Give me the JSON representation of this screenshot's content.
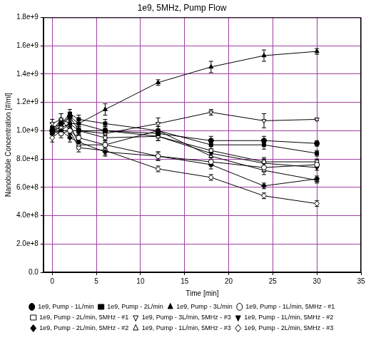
{
  "chart_data": {
    "type": "line",
    "title": "1e9, 5MHz, Pump Flow",
    "x_label": "Time [min]",
    "y_label": "Nanobubble Concentration [#/ml]",
    "x": [
      0,
      1,
      2,
      3,
      6,
      12,
      18,
      24,
      30
    ],
    "xlim": [
      -1,
      35
    ],
    "xticks": [
      0,
      5,
      10,
      15,
      20,
      25,
      30,
      35
    ],
    "ylim": [
      0,
      1800000000
    ],
    "yticks": [
      {
        "value": 0,
        "label": "0.0"
      },
      {
        "value": 200000000,
        "label": "2.0e+8"
      },
      {
        "value": 400000000,
        "label": "4.0e+8"
      },
      {
        "value": 600000000,
        "label": "6.0e+8"
      },
      {
        "value": 800000000,
        "label": "8.0e+8"
      },
      {
        "value": 1000000000,
        "label": "1.0e+9"
      },
      {
        "value": 1200000000,
        "label": "1.2e+9"
      },
      {
        "value": 1400000000,
        "label": "1.4e+9"
      },
      {
        "value": 1600000000,
        "label": "1.6e+9"
      },
      {
        "value": 1800000000,
        "label": "1.8e+9"
      }
    ],
    "grid": true,
    "legend": "bottom",
    "series": [
      {
        "name": "1e9, Pump - 1L/min",
        "color": "#000000",
        "marker": "circle",
        "values": [
          1000000000,
          1050000000,
          1100000000,
          1000000000,
          1000000000,
          980000000,
          930000000,
          930000000,
          910000000
        ],
        "errors": [
          30000000,
          30000000,
          30000000,
          30000000,
          30000000,
          30000000,
          30000000,
          30000000,
          20000000
        ]
      },
      {
        "name": "1e9, Pump - 2L/min",
        "color": "#000000",
        "marker": "square",
        "values": [
          1020000000,
          1050000000,
          1120000000,
          1080000000,
          1050000000,
          1000000000,
          900000000,
          900000000,
          840000000
        ],
        "errors": [
          30000000,
          30000000,
          30000000,
          30000000,
          30000000,
          30000000,
          30000000,
          30000000,
          20000000
        ]
      },
      {
        "name": "1e9, Pump - 3L/min",
        "color": "#000000",
        "marker": "triangle",
        "values": [
          1000000000,
          1000000000,
          1050000000,
          1050000000,
          1150000000,
          1340000000,
          1450000000,
          1530000000,
          1560000000
        ],
        "errors": [
          30000000,
          30000000,
          30000000,
          30000000,
          40000000,
          20000000,
          40000000,
          40000000,
          20000000
        ]
      },
      {
        "name": "1e9, Pump - 1L/min, 5MHz - #1",
        "color": "#000000",
        "marker": "circle-open",
        "values": [
          1000000000,
          980000000,
          1000000000,
          950000000,
          900000000,
          820000000,
          780000000,
          740000000,
          760000000
        ],
        "errors": [
          30000000,
          30000000,
          30000000,
          30000000,
          30000000,
          30000000,
          30000000,
          30000000,
          20000000
        ]
      },
      {
        "name": "1e9, Pump - 2L/min, 5MHz - #1",
        "color": "#000000",
        "marker": "square-open",
        "values": [
          1000000000,
          1020000000,
          1050000000,
          1000000000,
          950000000,
          960000000,
          860000000,
          780000000,
          780000000
        ],
        "errors": [
          30000000,
          30000000,
          30000000,
          30000000,
          30000000,
          30000000,
          30000000,
          30000000,
          20000000
        ]
      },
      {
        "name": "1e9, Pump - 3L/min, 5MHz - #3",
        "color": "#000000",
        "marker": "triangle-down-open",
        "values": [
          1050000000,
          1080000000,
          1000000000,
          1000000000,
          980000000,
          1050000000,
          1130000000,
          1070000000,
          1080000000
        ],
        "errors": [
          30000000,
          40000000,
          30000000,
          30000000,
          30000000,
          40000000,
          20000000,
          50000000,
          10000000
        ]
      },
      {
        "name": "1e9, Pump - 1L/min, 5MHz - #2",
        "color": "#000000",
        "marker": "triangle-down",
        "values": [
          1000000000,
          1030000000,
          1100000000,
          1050000000,
          1000000000,
          960000000,
          840000000,
          770000000,
          740000000
        ],
        "errors": [
          30000000,
          30000000,
          30000000,
          30000000,
          30000000,
          30000000,
          30000000,
          30000000,
          20000000
        ]
      },
      {
        "name": "1e9, Pump - 2L/min, 5MHz - #2",
        "color": "#000000",
        "marker": "diamond",
        "values": [
          980000000,
          1000000000,
          950000000,
          920000000,
          850000000,
          820000000,
          760000000,
          610000000,
          660000000
        ],
        "errors": [
          30000000,
          30000000,
          30000000,
          30000000,
          30000000,
          30000000,
          30000000,
          20000000,
          20000000
        ]
      },
      {
        "name": "1e9, Pump - 1L/min, 5MHz - #3",
        "color": "#000000",
        "marker": "triangle-open",
        "values": [
          1000000000,
          1080000000,
          1050000000,
          900000000,
          900000000,
          1000000000,
          820000000,
          720000000,
          650000000
        ],
        "errors": [
          30000000,
          40000000,
          30000000,
          30000000,
          30000000,
          30000000,
          30000000,
          30000000,
          20000000
        ]
      },
      {
        "name": "1e9, Pump - 2L/min, 5MHz - #3",
        "color": "#000000",
        "marker": "diamond-open",
        "values": [
          950000000,
          1000000000,
          1000000000,
          880000000,
          860000000,
          730000000,
          670000000,
          540000000,
          485000000
        ],
        "errors": [
          30000000,
          30000000,
          30000000,
          30000000,
          30000000,
          20000000,
          20000000,
          20000000,
          20000000
        ]
      }
    ]
  }
}
